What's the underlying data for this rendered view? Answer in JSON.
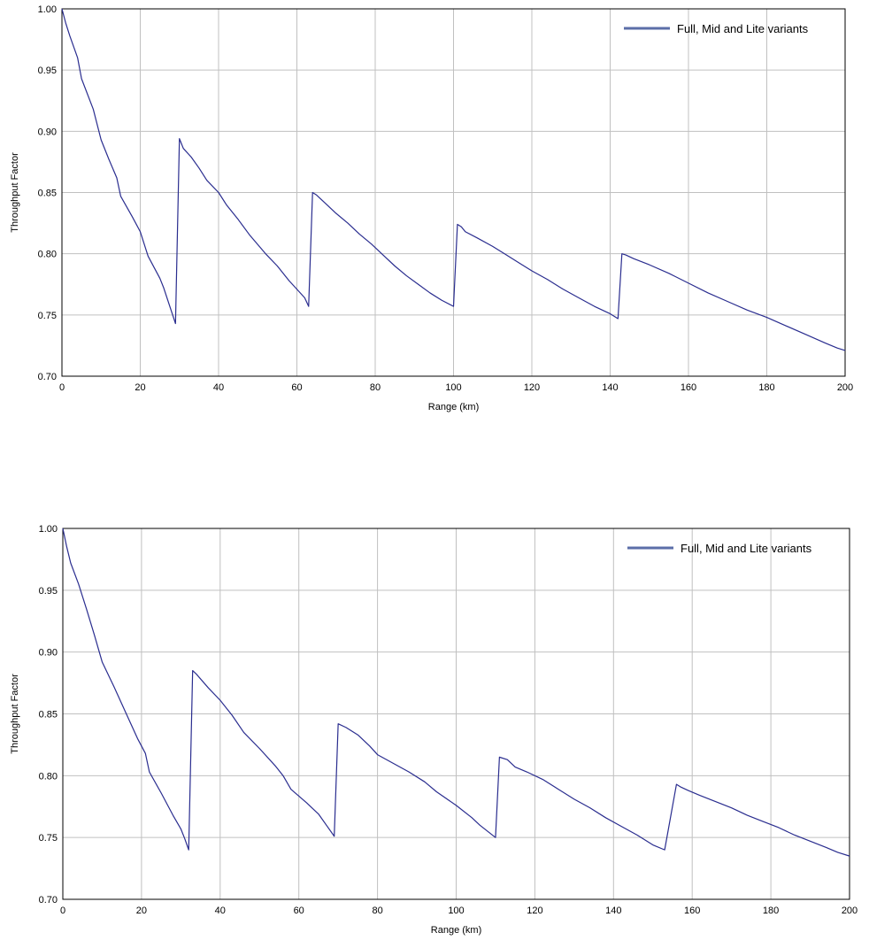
{
  "colors": {
    "series": "#2a2d8f",
    "legend_swatch": "#5b6ea8",
    "grid": "#c0c0c0"
  },
  "chart_data": [
    {
      "type": "line",
      "title": "",
      "xlabel": "Range (km)",
      "ylabel": "Throughput Factor",
      "xlim": [
        0,
        200
      ],
      "ylim": [
        0.7,
        1.0
      ],
      "x_ticks": [
        "0",
        "20",
        "40",
        "60",
        "80",
        "100",
        "120",
        "140",
        "160",
        "180",
        "200"
      ],
      "y_ticks": [
        "0.70",
        "0.75",
        "0.80",
        "0.85",
        "0.90",
        "0.95",
        "1.00"
      ],
      "grid": true,
      "legend_position": "top-right",
      "series": [
        {
          "name": "Full, Mid and Lite variants",
          "x": [
            0,
            1,
            2,
            4,
            5,
            8,
            10,
            12,
            14,
            15,
            18,
            20,
            22,
            25,
            26,
            29,
            30,
            31,
            33,
            35,
            37,
            40,
            42,
            45,
            48,
            52,
            55,
            58,
            60,
            62,
            63,
            64,
            65,
            67,
            70,
            73,
            76,
            79,
            82,
            85,
            88,
            91,
            94,
            97,
            100,
            101,
            102,
            103,
            106,
            110,
            113,
            117,
            120,
            124,
            128,
            132,
            136,
            140,
            142,
            143,
            144,
            146,
            150,
            155,
            160,
            165,
            170,
            175,
            180,
            185,
            190,
            195,
            198,
            200
          ],
          "y": [
            1.0,
            0.988,
            0.978,
            0.96,
            0.943,
            0.918,
            0.893,
            0.877,
            0.862,
            0.847,
            0.83,
            0.818,
            0.798,
            0.78,
            0.772,
            0.743,
            0.894,
            0.886,
            0.879,
            0.87,
            0.86,
            0.85,
            0.84,
            0.828,
            0.815,
            0.8,
            0.79,
            0.778,
            0.771,
            0.764,
            0.757,
            0.85,
            0.848,
            0.842,
            0.833,
            0.825,
            0.816,
            0.808,
            0.799,
            0.79,
            0.782,
            0.775,
            0.768,
            0.762,
            0.757,
            0.824,
            0.822,
            0.818,
            0.813,
            0.806,
            0.8,
            0.792,
            0.786,
            0.779,
            0.771,
            0.764,
            0.757,
            0.751,
            0.747,
            0.8,
            0.799,
            0.796,
            0.791,
            0.784,
            0.776,
            0.768,
            0.761,
            0.754,
            0.748,
            0.741,
            0.734,
            0.727,
            0.723,
            0.721
          ]
        }
      ]
    },
    {
      "type": "line",
      "title": "",
      "xlabel": "Range (km)",
      "ylabel": "Throughput Factor",
      "xlim": [
        0,
        200
      ],
      "ylim": [
        0.7,
        1.0
      ],
      "x_ticks": [
        "0",
        "20",
        "40",
        "60",
        "80",
        "100",
        "120",
        "140",
        "160",
        "180",
        "200"
      ],
      "y_ticks": [
        "0.70",
        "0.75",
        "0.80",
        "0.85",
        "0.90",
        "0.95",
        "1.00"
      ],
      "grid": true,
      "legend_position": "top-right",
      "series": [
        {
          "name": "Full, Mid and Lite variants",
          "x": [
            0,
            1,
            2,
            4,
            6,
            8,
            10,
            13,
            16,
            19,
            21,
            22,
            25,
            28,
            30,
            31,
            32,
            33,
            34,
            37,
            40,
            43,
            46,
            50,
            54,
            56,
            58,
            62,
            65,
            67,
            69,
            70,
            72,
            75,
            78,
            80,
            84,
            88,
            92,
            95,
            100,
            104,
            106,
            110,
            111,
            113,
            115,
            118,
            122,
            126,
            130,
            134,
            138,
            142,
            146,
            150,
            153,
            156,
            157,
            159,
            162,
            166,
            170,
            174,
            178,
            182,
            186,
            190,
            194,
            197,
            200
          ],
          "y": [
            1.0,
            0.985,
            0.972,
            0.955,
            0.935,
            0.914,
            0.892,
            0.872,
            0.851,
            0.83,
            0.818,
            0.803,
            0.786,
            0.768,
            0.757,
            0.749,
            0.74,
            0.885,
            0.882,
            0.871,
            0.861,
            0.849,
            0.835,
            0.822,
            0.808,
            0.8,
            0.789,
            0.778,
            0.769,
            0.76,
            0.751,
            0.842,
            0.839,
            0.833,
            0.824,
            0.817,
            0.81,
            0.803,
            0.795,
            0.787,
            0.776,
            0.766,
            0.76,
            0.75,
            0.815,
            0.813,
            0.807,
            0.803,
            0.797,
            0.789,
            0.781,
            0.774,
            0.766,
            0.759,
            0.752,
            0.744,
            0.74,
            0.793,
            0.791,
            0.788,
            0.784,
            0.779,
            0.774,
            0.768,
            0.763,
            0.758,
            0.752,
            0.747,
            0.742,
            0.738,
            0.735
          ]
        }
      ]
    }
  ]
}
